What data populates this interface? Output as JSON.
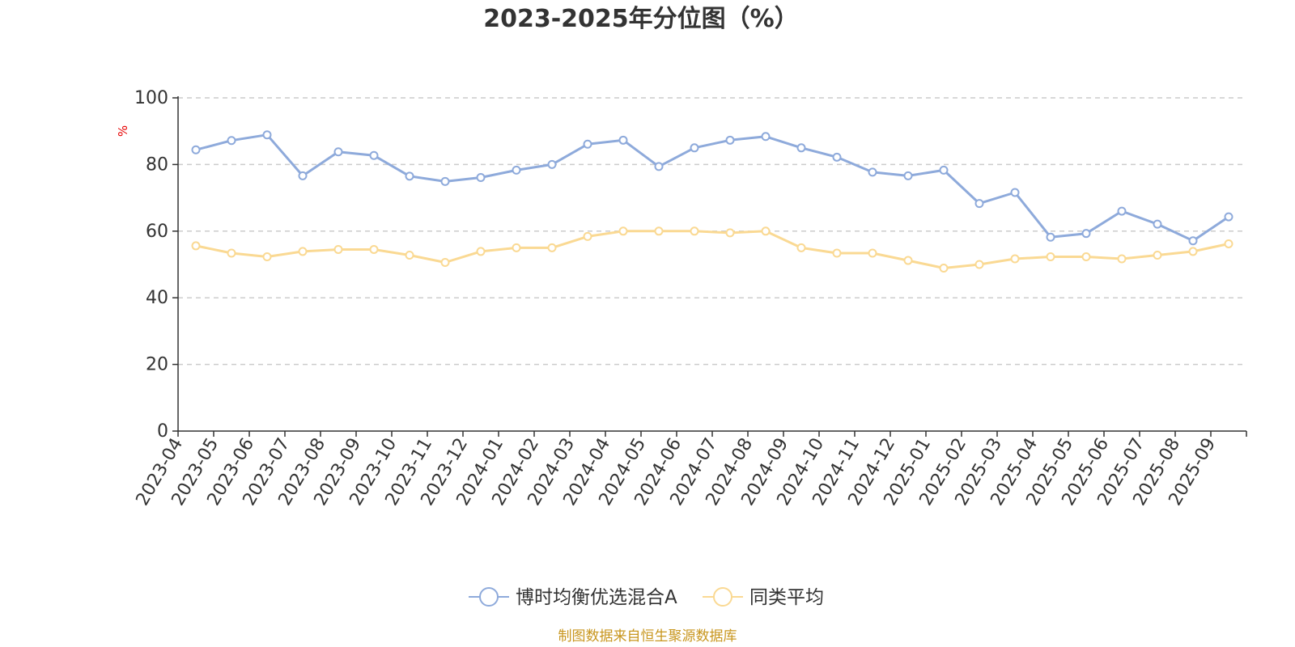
{
  "chart_data": {
    "type": "line",
    "title": "2023-2025年分位图（%）",
    "xlabel": "",
    "ylabel": "%",
    "ylim": [
      0,
      100
    ],
    "yticks": [
      0,
      20,
      40,
      60,
      80,
      100
    ],
    "grid": "horizontal-dashed",
    "legend_placement": "bottom-center",
    "categories": [
      "2023-04",
      "2023-05",
      "2023-06",
      "2023-07",
      "2023-08",
      "2023-09",
      "2023-10",
      "2023-11",
      "2023-12",
      "2024-01",
      "2024-02",
      "2024-03",
      "2024-04",
      "2024-05",
      "2024-06",
      "2024-07",
      "2024-08",
      "2024-09",
      "2024-10",
      "2024-11",
      "2024-12",
      "2025-01",
      "2025-02",
      "2025-03",
      "2025-04",
      "2025-05",
      "2025-06",
      "2025-07",
      "2025-08",
      "2025-09"
    ],
    "series": [
      {
        "name": "博时均衡优选混合A",
        "color": "#8eaadb",
        "values": [
          84.4,
          87.2,
          88.9,
          76.6,
          83.8,
          82.7,
          76.5,
          74.9,
          76.1,
          78.3,
          80.0,
          86.1,
          87.3,
          79.4,
          85.0,
          87.3,
          88.4,
          85.0,
          82.2,
          77.7,
          76.6,
          78.3,
          68.3,
          71.6,
          58.2,
          59.3,
          66.0,
          62.1,
          57.1,
          64.3
        ]
      },
      {
        "name": "同类平均",
        "color": "#fad993",
        "values": [
          55.6,
          53.4,
          52.3,
          53.9,
          54.5,
          54.5,
          52.8,
          50.6,
          53.9,
          55.0,
          55.0,
          58.4,
          60.0,
          60.0,
          60.0,
          59.5,
          60.0,
          55.0,
          53.4,
          53.4,
          51.2,
          48.9,
          50.0,
          51.7,
          52.3,
          52.3,
          51.7,
          52.8,
          53.9,
          56.2
        ]
      }
    ]
  },
  "footer": {
    "source": "制图数据来自恒生聚源数据库"
  }
}
